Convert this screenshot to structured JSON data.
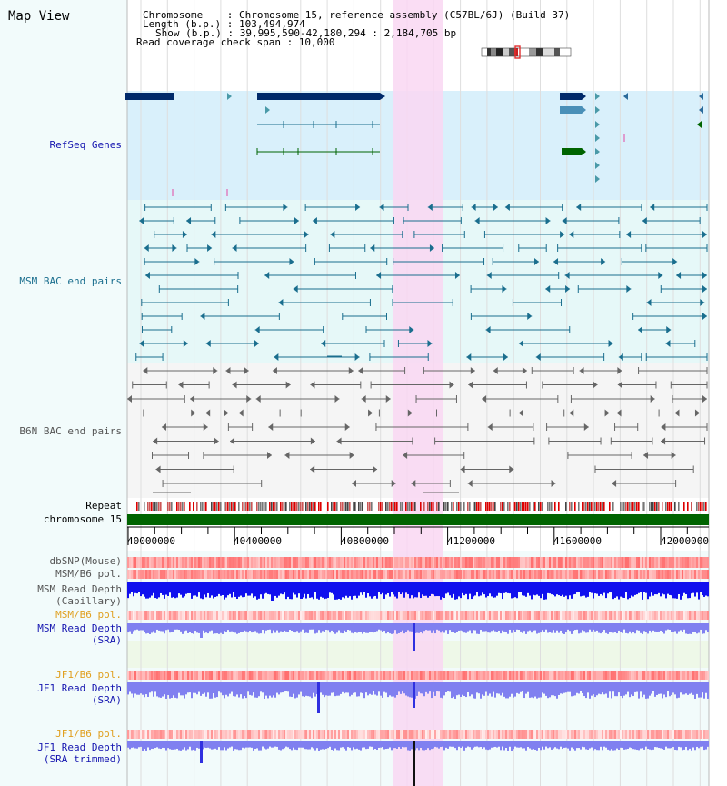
{
  "title": "Map View",
  "info": {
    "chromosome_line": "Chromosome    : Chromosome 15, reference assembly (C57BL/6J) (Build 37)",
    "length_line": "Length (b.p.) : 103,494,974",
    "show_line": "Show (b.p.) : 39,995,590-42,180,294 : 2,184,705 bp",
    "coverage_line": "Read coverage check span : 10,000"
  },
  "tracks": {
    "refseq": "RefSeq Genes",
    "msm_bac": "MSM BAC end pairs",
    "b6n_bac": "B6N BAC end pairs",
    "repeat": "Repeat",
    "chromosome": "chromosome 15",
    "dbsnp": "dbSNP(Mouse)",
    "msm_b6_pol_1": "MSM/B6 pol.",
    "msm_read_depth_cap_1": "MSM Read Depth",
    "msm_read_depth_cap_2": "(Capillary)",
    "msm_b6_pol_2": "MSM/B6 pol.",
    "msm_read_depth_sra_1": "MSM Read Depth",
    "msm_read_depth_sra_2": "(SRA)",
    "jf1_b6_pol_1": "JF1/B6 pol.",
    "jf1_read_depth_sra_1": "JF1 Read Depth",
    "jf1_read_depth_sra_2": "(SRA)",
    "jf1_b6_pol_2": "JF1/B6 pol.",
    "jf1_read_depth_trim_1": "JF1 Read Depth",
    "jf1_read_depth_trim_2": "(SRA trimmed)"
  },
  "axis_ticks": [
    "40000000",
    "40400000",
    "40800000",
    "41200000",
    "41600000",
    "42000000"
  ],
  "colors": {
    "refseq_bg": "#d9f0fb",
    "msm_bg": "#e6f8f8",
    "b6n_bg": "#f5f5f5",
    "highlight": "#f9d7f2",
    "gene_dark": "#002a6a",
    "gene_light": "#4a90b8",
    "gene_green": "#006400",
    "msm_feature": "#1a6e8e",
    "b6n_feature": "#666666",
    "depth_blue": "#1010ee",
    "depth_light": "#8080f0",
    "pol_red": "#ee3333",
    "label_blue": "#1515b0",
    "label_teal": "#1a6e8e",
    "label_orange": "#e0a020"
  }
}
